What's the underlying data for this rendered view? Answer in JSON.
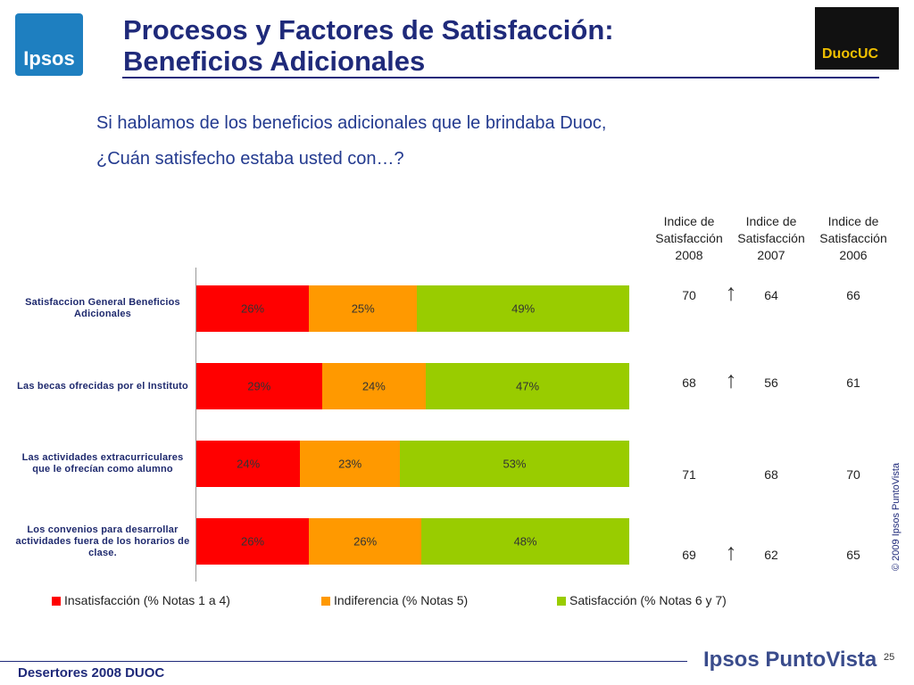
{
  "header": {
    "logo_left": "Ipsos",
    "title_line1": "Procesos y Factores de Satisfacción:",
    "title_line2": "Beneficios Adicionales",
    "logo_right": "DuocUC"
  },
  "question": {
    "line1": "Si hablamos de los beneficios adicionales que le brindaba Duoc,",
    "line2": "¿Cuán satisfecho estaba usted con…?"
  },
  "chart_data": {
    "type": "stacked_bar_h",
    "categories": [
      "Satisfaccion General Beneficios Adicionales",
      "Las becas ofrecidas por el Instituto",
      "Las actividades extracurriculares que le ofrecían como alumno",
      "Los convenios para desarrollar actividades fuera de los horarios de clase."
    ],
    "series": [
      {
        "name": "Insatisfacción (% Notas 1 a 4)",
        "color": "#ff0000",
        "values": [
          26,
          29,
          24,
          26
        ],
        "value_labels": [
          "26%",
          "29%",
          "24%",
          "26%"
        ]
      },
      {
        "name": "Indiferencia (% Notas 5)",
        "color": "#ff9900",
        "values": [
          25,
          24,
          23,
          26
        ],
        "value_labels": [
          "25%",
          "24%",
          "23%",
          "26%"
        ]
      },
      {
        "name": "Satisfacción (% Notas 6 y 7)",
        "color": "#99cc00",
        "values": [
          49,
          47,
          53,
          48
        ],
        "value_labels": [
          "49%",
          "47%",
          "53%",
          "48%"
        ]
      }
    ],
    "xlim": [
      0,
      100
    ],
    "legend": "bottom"
  },
  "index_table": {
    "headers": [
      "Indice de Satisfacción 2008",
      "Indice de Satisfacción 2007",
      "Indice de Satisfacción 2006"
    ],
    "rows": [
      {
        "values": [
          70,
          64,
          66
        ],
        "arrow_up": true
      },
      {
        "values": [
          68,
          56,
          61
        ],
        "arrow_up": true
      },
      {
        "values": [
          71,
          68,
          70
        ],
        "arrow_up": false
      },
      {
        "values": [
          69,
          62,
          65
        ],
        "arrow_up": true
      }
    ]
  },
  "footer": {
    "left": "Desertores 2008 DUOC",
    "brand": "Ipsos PuntoVista",
    "page": "25",
    "copyright": "© 2009 Ipsos PuntoVista"
  }
}
